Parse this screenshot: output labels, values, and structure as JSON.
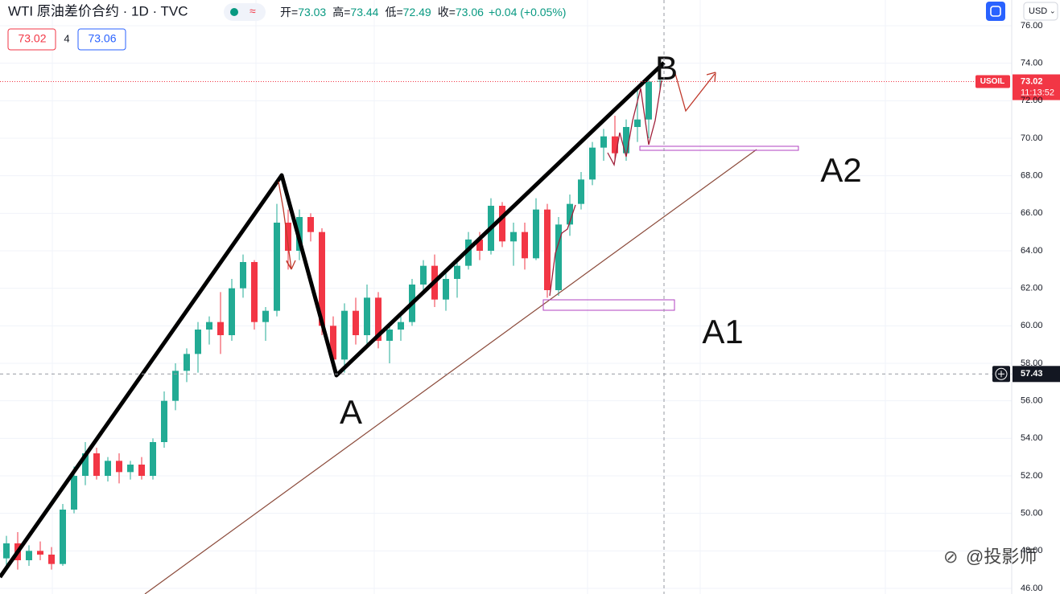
{
  "header": {
    "symbol": "WTI 原油差价合约 · 1D · TVC",
    "ohlc": [
      {
        "label": "开=",
        "value": 73.03
      },
      {
        "label": "高=",
        "value": 73.44
      },
      {
        "label": "低=",
        "value": 72.49
      },
      {
        "label": "收=",
        "value": 73.06
      }
    ],
    "change": "+0.04 (+0.05%)",
    "bid": 73.02,
    "spread": 4,
    "ask": 73.06,
    "currency": "USD"
  },
  "chart_data": {
    "type": "candlestick",
    "open": [
      47.6,
      48.4,
      47.5,
      48.0,
      47.8,
      47.3,
      50.2,
      52.0,
      53.2,
      52.0,
      52.8,
      52.2,
      52.6,
      52.0,
      53.8,
      56.0,
      57.6,
      58.5,
      59.8,
      60.2,
      59.5,
      62.0,
      63.4,
      60.2,
      60.8,
      65.5,
      64.0,
      65.8,
      65.0,
      60.0,
      58.2,
      60.8,
      59.5,
      61.5,
      59.2,
      59.8,
      60.2,
      62.2,
      63.2,
      61.4,
      62.5,
      63.2,
      64.6,
      64.0,
      66.4,
      64.5,
      65.0,
      63.6,
      66.2,
      61.9,
      65.4,
      66.5,
      67.8,
      69.5,
      70.1,
      69.2,
      70.6,
      71.0,
      73.03
    ],
    "high": [
      48.8,
      49.0,
      48.3,
      48.5,
      48.2,
      50.5,
      52.5,
      53.8,
      53.5,
      53.0,
      53.2,
      52.8,
      53.0,
      54.0,
      56.5,
      58.0,
      58.8,
      60.2,
      60.5,
      61.8,
      62.5,
      63.8,
      63.5,
      61.0,
      66.5,
      66.2,
      66.2,
      66.0,
      65.2,
      60.5,
      61.2,
      61.5,
      62.2,
      61.8,
      60.0,
      60.5,
      62.5,
      63.5,
      63.8,
      62.8,
      63.5,
      65.0,
      65.0,
      66.8,
      66.6,
      65.5,
      65.5,
      66.8,
      66.5,
      65.8,
      67.0,
      68.2,
      69.8,
      70.5,
      71.2,
      71.0,
      72.8,
      73.1,
      73.44
    ],
    "low": [
      47.2,
      47.0,
      47.2,
      47.5,
      47.0,
      47.2,
      50.0,
      51.5,
      51.8,
      51.7,
      51.6,
      51.8,
      51.8,
      51.8,
      53.5,
      55.5,
      57.0,
      57.5,
      59.0,
      58.5,
      59.2,
      61.5,
      59.8,
      59.2,
      60.5,
      63.0,
      63.5,
      64.5,
      59.5,
      57.8,
      57.5,
      59.0,
      59.0,
      58.8,
      58.0,
      59.2,
      60.0,
      61.8,
      61.0,
      60.8,
      61.5,
      63.0,
      63.5,
      63.8,
      64.2,
      63.2,
      63.0,
      63.5,
      61.5,
      61.6,
      64.8,
      66.2,
      67.5,
      68.8,
      68.8,
      68.8,
      69.8,
      70.0,
      72.49
    ],
    "close": [
      48.4,
      47.5,
      48.0,
      47.8,
      47.3,
      50.2,
      52.0,
      53.2,
      52.0,
      52.8,
      52.2,
      52.6,
      52.0,
      53.8,
      56.0,
      57.6,
      58.5,
      59.8,
      60.2,
      59.5,
      62.0,
      63.4,
      60.2,
      60.8,
      65.5,
      64.0,
      65.8,
      65.0,
      60.0,
      58.2,
      60.8,
      59.5,
      61.5,
      59.2,
      59.8,
      60.2,
      62.2,
      63.2,
      61.4,
      62.5,
      63.2,
      64.6,
      64.0,
      66.4,
      64.5,
      65.0,
      63.6,
      66.2,
      61.9,
      65.4,
      66.5,
      67.8,
      69.5,
      70.1,
      69.2,
      70.6,
      71.0,
      73.02,
      73.06
    ],
    "ylim": [
      46,
      76
    ],
    "yticks": [
      {
        "value": 46,
        "label": "46.00"
      },
      {
        "value": 48,
        "label": "48.00"
      },
      {
        "value": 50,
        "label": "50.00"
      },
      {
        "value": 52,
        "label": "52.00"
      },
      {
        "value": 54,
        "label": "54.00"
      },
      {
        "value": 56,
        "label": "56.00"
      },
      {
        "value": 58,
        "label": "58.00"
      },
      {
        "value": 60,
        "label": "60.00"
      },
      {
        "value": 62,
        "label": "62.00"
      },
      {
        "value": 64,
        "label": "64.00"
      },
      {
        "value": 66,
        "label": "66.00"
      },
      {
        "value": 68,
        "label": "68.00"
      },
      {
        "value": 70,
        "label": "70.00"
      },
      {
        "value": 72,
        "label": "72.00"
      },
      {
        "value": 74,
        "label": "74.00"
      },
      {
        "value": 76,
        "label": "76.00"
      }
    ],
    "grid": true,
    "up_color": "#22ab94",
    "down_color": "#f23645",
    "last_price": {
      "symbol": "USOIL",
      "value": 73.02,
      "countdown": "11:13:52"
    },
    "crosshair": {
      "value": 57.43
    },
    "annotations": [
      "B",
      "A",
      "A1",
      "A2"
    ]
  },
  "watermark": "@投影师"
}
